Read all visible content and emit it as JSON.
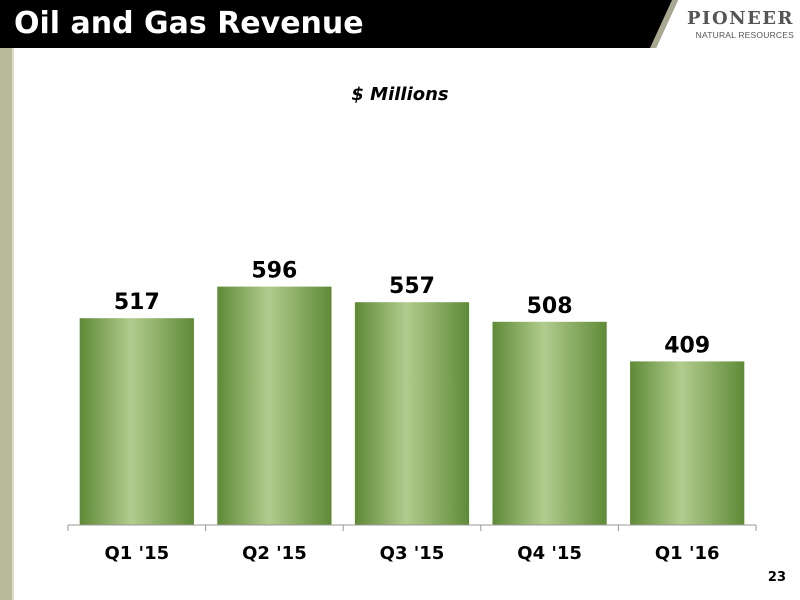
{
  "slide": {
    "title": "Oil and Gas Revenue",
    "page_number": "23"
  },
  "logo": {
    "main": "PIONEER",
    "sub": "NATURAL RESOURCES"
  },
  "chart_data": {
    "type": "bar",
    "title": "",
    "subtitle": "$ Millions",
    "categories": [
      "Q1 '15",
      "Q2 '15",
      "Q3 '15",
      "Q4 '15",
      "Q1 '16"
    ],
    "values": [
      517,
      596,
      557,
      508,
      409
    ],
    "data_labels": [
      "517",
      "596",
      "557",
      "508",
      "409"
    ],
    "xlabel": "",
    "ylabel": "",
    "ylim": [
      0,
      1000
    ],
    "grid": false,
    "legend": "none",
    "bar_color_light": "#b2cc8e",
    "bar_color_dark": "#5e8a36"
  }
}
